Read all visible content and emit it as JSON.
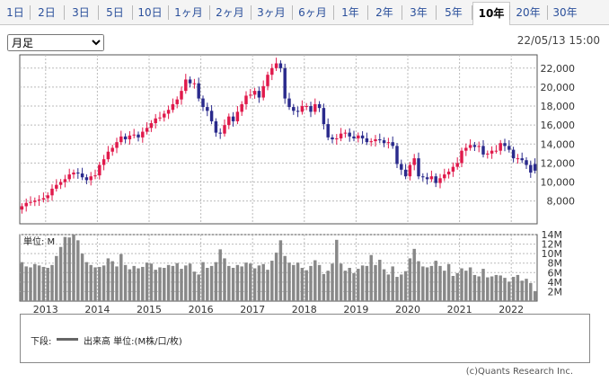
{
  "tabs": [
    {
      "label": "1日",
      "active": false
    },
    {
      "label": "2日",
      "active": false
    },
    {
      "label": "3日",
      "active": false
    },
    {
      "label": "5日",
      "active": false
    },
    {
      "label": "10日",
      "active": false
    },
    {
      "label": "1ヶ月",
      "active": false
    },
    {
      "label": "2ヶ月",
      "active": false
    },
    {
      "label": "3ヶ月",
      "active": false
    },
    {
      "label": "6ヶ月",
      "active": false
    },
    {
      "label": "1年",
      "active": false
    },
    {
      "label": "2年",
      "active": false
    },
    {
      "label": "3年",
      "active": false
    },
    {
      "label": "5年",
      "active": false
    },
    {
      "label": "10年",
      "active": true
    },
    {
      "label": "20年",
      "active": false
    },
    {
      "label": "30年",
      "active": false
    }
  ],
  "period_select": {
    "value": "月足"
  },
  "timestamp": "22/05/13 15:00",
  "legend": {
    "lower_label": "下段:",
    "volume_label": "出来高 単位:(M株/口/枚)"
  },
  "copyright": "(c)Quants Research Inc.",
  "colors": {
    "up": "#e0194b",
    "down": "#2a2a8c",
    "volume": "#888888"
  },
  "chart_data": {
    "type": "candlestick",
    "price_axis": {
      "ticks": [
        "8,000",
        "10,000",
        "12,000",
        "14,000",
        "16,000",
        "18,000",
        "20,000",
        "22,000"
      ],
      "ylim": [
        5600,
        23400
      ]
    },
    "volume_axis": {
      "unit_label": "単位: M",
      "ticks": [
        "2M",
        "4M",
        "6M",
        "8M",
        "10M",
        "12M",
        "14M"
      ],
      "ylim": [
        0,
        14
      ]
    },
    "x_labels": [
      "2013",
      "2014",
      "2015",
      "2016",
      "2017",
      "2018",
      "2019",
      "2020",
      "2021",
      "2022"
    ],
    "months": 120,
    "close": [
      7450,
      7800,
      7900,
      8050,
      8150,
      8300,
      8600,
      9300,
      9700,
      10000,
      10300,
      10800,
      11000,
      10900,
      10500,
      10200,
      10600,
      10700,
      11800,
      12400,
      13200,
      13600,
      14200,
      14800,
      14500,
      14900,
      15000,
      14700,
      15300,
      15700,
      16200,
      16700,
      16800,
      17200,
      17600,
      18200,
      18700,
      19600,
      20800,
      20400,
      20400,
      18800,
      17900,
      17500,
      16400,
      15200,
      15100,
      16000,
      16900,
      16400,
      17400,
      18200,
      19100,
      19200,
      19600,
      18900,
      20100,
      21300,
      22000,
      22500,
      22000,
      18800,
      17900,
      17500,
      17400,
      18000,
      18000,
      17400,
      18200,
      17800,
      16100,
      14700,
      14500,
      14600,
      15100,
      15200,
      14800,
      14600,
      14900,
      14600,
      14200,
      14300,
      14500,
      14400,
      14100,
      14200,
      13800,
      11900,
      11300,
      10600,
      11800,
      12500,
      10600,
      10500,
      10300,
      10600,
      9900,
      10400,
      10800,
      11100,
      11600,
      12000,
      13300,
      13600,
      13900,
      13700,
      13800,
      12900,
      13000,
      13300,
      13300,
      14100,
      13800,
      13400,
      12500,
      12500,
      12300,
      11800,
      11000,
      11200
    ],
    "open": [
      7100,
      7450,
      7800,
      7900,
      8050,
      8150,
      8300,
      8600,
      9300,
      9700,
      10000,
      10300,
      10800,
      11000,
      10900,
      10500,
      10200,
      10600,
      10700,
      11800,
      12400,
      13200,
      13600,
      14200,
      14800,
      14500,
      14900,
      15000,
      14700,
      15300,
      15700,
      16200,
      16700,
      16800,
      17200,
      17600,
      18200,
      18700,
      19600,
      20800,
      20400,
      20400,
      18800,
      17900,
      17500,
      16400,
      15200,
      15100,
      16000,
      16900,
      16400,
      17400,
      18200,
      19100,
      19200,
      19600,
      18900,
      20100,
      21300,
      22000,
      22500,
      22000,
      18800,
      17900,
      17500,
      17400,
      18000,
      18000,
      17400,
      18200,
      17800,
      16100,
      14700,
      14500,
      14600,
      15100,
      15200,
      14800,
      14600,
      14900,
      14600,
      14200,
      14300,
      14500,
      14400,
      14100,
      14200,
      13800,
      11900,
      11300,
      10600,
      11800,
      12500,
      10600,
      10500,
      10300,
      10600,
      9900,
      10400,
      10800,
      11100,
      11600,
      12000,
      13300,
      13600,
      13900,
      13700,
      13800,
      12900,
      13000,
      13300,
      13300,
      14100,
      13800,
      13400,
      12500,
      12500,
      12300,
      11800,
      11900
    ],
    "volume": [
      8.2,
      7.3,
      7.1,
      7.8,
      7.5,
      7.2,
      7.0,
      7.6,
      9.5,
      11.4,
      13.5,
      13.4,
      14.0,
      12.8,
      10.0,
      8.2,
      7.6,
      7.1,
      7.2,
      7.5,
      9.0,
      8.4,
      7.3,
      9.9,
      7.6,
      6.7,
      7.4,
      6.9,
      7.2,
      8.1,
      7.9,
      6.6,
      7.1,
      7.0,
      7.6,
      7.4,
      8.0,
      6.8,
      7.5,
      7.9,
      6.2,
      5.6,
      8.2,
      7.0,
      7.4,
      8.2,
      10.9,
      9.0,
      7.4,
      7.0,
      7.6,
      7.3,
      8.1,
      7.9,
      6.9,
      7.5,
      7.8,
      6.6,
      8.5,
      10.2,
      12.8,
      9.5,
      8.1,
      7.6,
      8.1,
      7.0,
      6.5,
      7.4,
      8.6,
      7.6,
      5.7,
      6.4,
      7.9,
      12.9,
      7.9,
      6.4,
      7.0,
      5.9,
      6.8,
      7.5,
      7.4,
      9.7,
      7.6,
      8.7,
      6.7,
      5.6,
      7.3,
      5.1,
      5.6,
      6.3,
      9.0,
      11.0,
      8.4,
      7.3,
      7.1,
      7.4,
      8.5,
      7.4,
      6.4,
      7.8,
      5.3,
      5.9,
      6.9,
      6.4,
      7.1,
      5.5,
      5.2,
      6.8,
      5.0,
      5.2,
      5.5,
      5.4,
      4.9,
      4.1,
      5.1,
      5.5,
      4.3,
      4.7,
      3.8,
      2.1
    ]
  }
}
